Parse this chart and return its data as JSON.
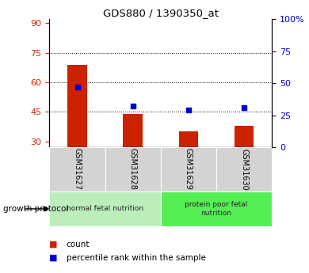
{
  "title": "GDS880 / 1390350_at",
  "samples": [
    "GSM31627",
    "GSM31628",
    "GSM31629",
    "GSM31630"
  ],
  "bar_values": [
    69,
    44,
    35,
    38
  ],
  "dot_values_pct": [
    47,
    32,
    29,
    31
  ],
  "bar_color": "#cc2200",
  "dot_color": "#0000cc",
  "ylim_left": [
    27,
    92
  ],
  "ylim_right": [
    0,
    100
  ],
  "yticks_left": [
    30,
    45,
    60,
    75,
    90
  ],
  "yticks_right": [
    0,
    25,
    50,
    75,
    100
  ],
  "yticklabels_right": [
    "0",
    "25",
    "50",
    "75",
    "100%"
  ],
  "hlines": [
    45,
    60,
    75
  ],
  "groups": [
    {
      "label": "normal fetal nutrition",
      "indices": [
        0,
        1
      ],
      "color": "#bbeebb"
    },
    {
      "label": "protein poor fetal\nnutrition",
      "indices": [
        2,
        3
      ],
      "color": "#55ee55"
    }
  ],
  "group_label": "growth protocol",
  "bar_bottom": 27,
  "figsize": [
    3.9,
    3.45
  ],
  "dpi": 100
}
